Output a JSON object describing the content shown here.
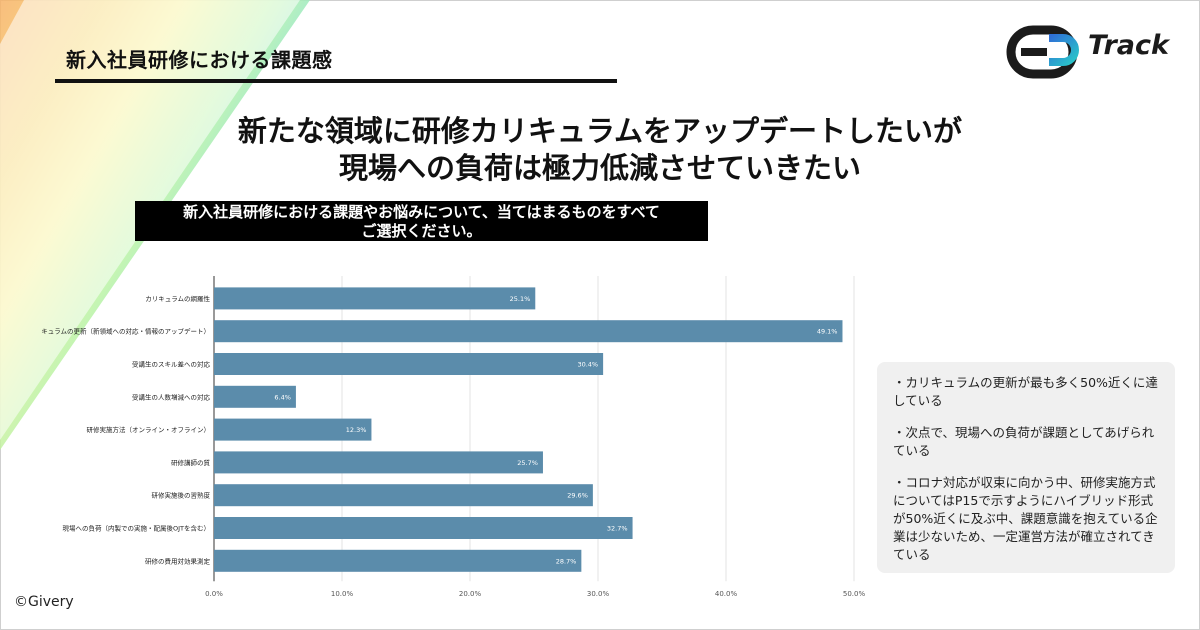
{
  "header": {
    "title": "新入社員研修における課題感"
  },
  "logo": {
    "text": "Track"
  },
  "headline": {
    "line1": "新たな領域に研修カリキュラムをアップデートしたいが",
    "line2": "現場への負荷は極力低減させていきたい"
  },
  "question": {
    "line1": "新入社員研修における課題やお悩みについて、当てはまるものをすべて",
    "line2": "ご選択ください。"
  },
  "chart_data": {
    "type": "bar",
    "orientation": "horizontal",
    "categories": [
      "カリキュラムの網羅性",
      "カリキュラムの更新（新領域への対応・情報のアップデート）",
      "受講生のスキル差への対応",
      "受講生の人数増減への対応",
      "研修実施方法（オンライン・オフライン）",
      "研修講師の質",
      "研修実施後の習熟度",
      "現場への負荷（内製での実施・配属後OJTを含む）",
      "研修の費用対効果測定"
    ],
    "values": [
      25.1,
      49.1,
      30.4,
      6.4,
      12.3,
      25.7,
      29.6,
      32.7,
      28.7
    ],
    "value_labels": [
      "25.1%",
      "49.1%",
      "30.4%",
      "6.4%",
      "12.3%",
      "25.7%",
      "29.6%",
      "32.7%",
      "28.7%"
    ],
    "xlim": [
      0,
      50
    ],
    "x_ticks": [
      0,
      10,
      20,
      30,
      40,
      50
    ],
    "x_tick_labels": [
      "0.0%",
      "10.0%",
      "20.0%",
      "30.0%",
      "40.0%",
      "50.0%"
    ],
    "bar_color": "#5b8cab",
    "grid": true,
    "title": "",
    "xlabel": "",
    "ylabel": ""
  },
  "notes": [
    "・カリキュラムの更新が最も多く50%近くに達している",
    "・次点で、現場への負荷が課題としてあげられている",
    "・コロナ対応が収束に向かう中、研修実施方式についてはP15で示すようにハイブリッド形式が50%近くに及ぶ中、課題意識を抱えている企業は少ないため、一定運営方法が確立されてきている"
  ],
  "footer": {
    "copyright": "©Givery"
  },
  "colors": {
    "bar": "#5b8cab",
    "note_bg": "#f0f0f0",
    "question_bg": "#000000"
  }
}
